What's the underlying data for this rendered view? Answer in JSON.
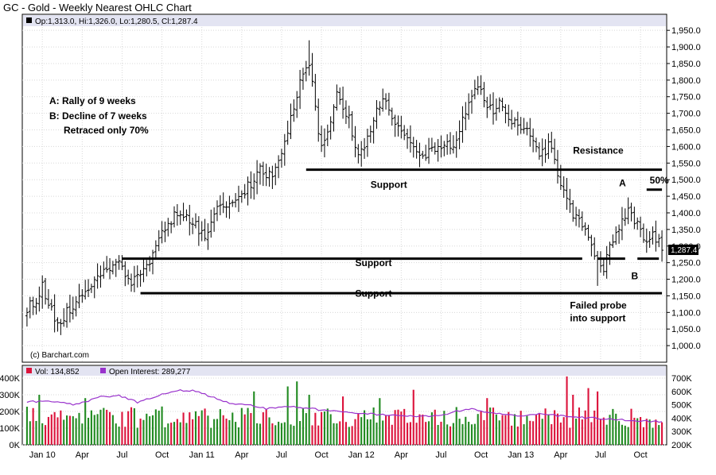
{
  "chart_data": {
    "type": "ohlc",
    "title": "GC - Gold - Weekly Nearest OHLC Chart",
    "info_line": "Op:1,313.0, Hi:1,326.0, Lo:1,280.5, Cl:1,287.4",
    "last_price_label": "1,287.4",
    "last_price": 1287.4,
    "copyright": "(c) Barchart.com",
    "price_axis": {
      "ylim": [
        950,
        1960
      ],
      "ticks": [
        1000,
        1050,
        1100,
        1150,
        1200,
        1250,
        1300,
        1350,
        1400,
        1450,
        1500,
        1550,
        1600,
        1650,
        1700,
        1750,
        1800,
        1850,
        1900,
        1950
      ],
      "tick_labels": [
        "1,000.0",
        "1,050.0",
        "1,100.0",
        "1,150.0",
        "1,200.0",
        "1,250.0",
        "1,300.0",
        "1,350.0",
        "1,400.0",
        "1,450.0",
        "1,500.0",
        "1,550.0",
        "1,600.0",
        "1,650.0",
        "1,700.0",
        "1,750.0",
        "1,800.0",
        "1,850.0",
        "1,900.0",
        "1,950.0"
      ]
    },
    "x_axis": {
      "labels": [
        "Jan 10",
        "Apr",
        "Jul",
        "Oct",
        "Jan 11",
        "Apr",
        "Jul",
        "Oct",
        "Jan 12",
        "Apr",
        "Jul",
        "Oct",
        "Jan 13",
        "Apr",
        "Jul",
        "Oct"
      ],
      "label_weeks": [
        5,
        18,
        31,
        44,
        57,
        70,
        83,
        96,
        109,
        122,
        135,
        148,
        161,
        174,
        187,
        200
      ],
      "week_count": 208
    },
    "price_anchors": [
      [
        0,
        1110
      ],
      [
        3,
        1140
      ],
      [
        5,
        1180
      ],
      [
        7,
        1130
      ],
      [
        9,
        1080
      ],
      [
        11,
        1070
      ],
      [
        13,
        1100
      ],
      [
        16,
        1120
      ],
      [
        18,
        1150
      ],
      [
        21,
        1180
      ],
      [
        24,
        1220
      ],
      [
        27,
        1240
      ],
      [
        30,
        1250
      ],
      [
        32,
        1210
      ],
      [
        34,
        1195
      ],
      [
        36,
        1210
      ],
      [
        39,
        1240
      ],
      [
        42,
        1290
      ],
      [
        44,
        1340
      ],
      [
        46,
        1370
      ],
      [
        48,
        1390
      ],
      [
        50,
        1400
      ],
      [
        52,
        1390
      ],
      [
        54,
        1370
      ],
      [
        56,
        1350
      ],
      [
        58,
        1330
      ],
      [
        60,
        1370
      ],
      [
        62,
        1420
      ],
      [
        64,
        1430
      ],
      [
        66,
        1420
      ],
      [
        68,
        1440
      ],
      [
        70,
        1450
      ],
      [
        72,
        1480
      ],
      [
        74,
        1500
      ],
      [
        76,
        1530
      ],
      [
        78,
        1520
      ],
      [
        80,
        1500
      ],
      [
        82,
        1560
      ],
      [
        84,
        1610
      ],
      [
        86,
        1680
      ],
      [
        88,
        1760
      ],
      [
        90,
        1820
      ],
      [
        92,
        1850
      ],
      [
        93,
        1790
      ],
      [
        95,
        1640
      ],
      [
        96,
        1600
      ],
      [
        98,
        1640
      ],
      [
        100,
        1720
      ],
      [
        101,
        1760
      ],
      [
        103,
        1700
      ],
      [
        105,
        1680
      ],
      [
        107,
        1600
      ],
      [
        109,
        1580
      ],
      [
        111,
        1620
      ],
      [
        113,
        1680
      ],
      [
        115,
        1730
      ],
      [
        116,
        1750
      ],
      [
        118,
        1700
      ],
      [
        120,
        1660
      ],
      [
        122,
        1650
      ],
      [
        124,
        1640
      ],
      [
        126,
        1590
      ],
      [
        128,
        1570
      ],
      [
        130,
        1580
      ],
      [
        132,
        1600
      ],
      [
        134,
        1590
      ],
      [
        136,
        1610
      ],
      [
        138,
        1590
      ],
      [
        140,
        1620
      ],
      [
        142,
        1680
      ],
      [
        144,
        1720
      ],
      [
        146,
        1760
      ],
      [
        148,
        1770
      ],
      [
        150,
        1720
      ],
      [
        152,
        1710
      ],
      [
        154,
        1730
      ],
      [
        156,
        1690
      ],
      [
        158,
        1680
      ],
      [
        160,
        1670
      ],
      [
        162,
        1660
      ],
      [
        164,
        1640
      ],
      [
        166,
        1590
      ],
      [
        168,
        1580
      ],
      [
        170,
        1600
      ],
      [
        172,
        1560
      ],
      [
        174,
        1480
      ],
      [
        176,
        1450
      ],
      [
        178,
        1380
      ],
      [
        180,
        1390
      ],
      [
        182,
        1340
      ],
      [
        184,
        1310
      ],
      [
        186,
        1250
      ],
      [
        188,
        1230
      ],
      [
        190,
        1290
      ],
      [
        192,
        1340
      ],
      [
        194,
        1370
      ],
      [
        196,
        1400
      ],
      [
        197,
        1395
      ],
      [
        199,
        1360
      ],
      [
        200,
        1340
      ],
      [
        202,
        1320
      ],
      [
        204,
        1330
      ],
      [
        206,
        1310
      ],
      [
        207,
        1287.4
      ]
    ],
    "volume_axis": {
      "ylim": [
        0,
        400000
      ],
      "ticks": [
        0,
        100000,
        200000,
        300000,
        400000
      ],
      "tick_labels": [
        "0K",
        "100K",
        "200K",
        "300K",
        "400K"
      ],
      "legend": "Vol: 134,852",
      "up_color": "#228B22",
      "down_color": "#DC143C"
    },
    "open_interest_axis": {
      "ylim": [
        200000,
        700000
      ],
      "ticks": [
        200000,
        300000,
        400000,
        500000,
        600000,
        700000
      ],
      "tick_labels": [
        "200K",
        "300K",
        "400K",
        "500K",
        "600K",
        "700K"
      ],
      "legend": "Open Interest: 289,277",
      "color": "#9932CC",
      "anchors": [
        [
          0,
          520000
        ],
        [
          8,
          530000
        ],
        [
          16,
          500000
        ],
        [
          24,
          560000
        ],
        [
          30,
          570000
        ],
        [
          36,
          520000
        ],
        [
          44,
          580000
        ],
        [
          50,
          610000
        ],
        [
          56,
          600000
        ],
        [
          60,
          560000
        ],
        [
          66,
          510000
        ],
        [
          72,
          500000
        ],
        [
          78,
          470000
        ],
        [
          84,
          490000
        ],
        [
          90,
          480000
        ],
        [
          96,
          460000
        ],
        [
          104,
          450000
        ],
        [
          112,
          430000
        ],
        [
          120,
          420000
        ],
        [
          128,
          410000
        ],
        [
          136,
          430000
        ],
        [
          144,
          470000
        ],
        [
          152,
          440000
        ],
        [
          160,
          420000
        ],
        [
          168,
          430000
        ],
        [
          176,
          410000
        ],
        [
          184,
          400000
        ],
        [
          192,
          390000
        ],
        [
          200,
          380000
        ],
        [
          207,
          370000
        ]
      ]
    },
    "annotations": [
      {
        "id": "resistance",
        "text": "Resistance",
        "week": 178,
        "price": 1578
      },
      {
        "id": "support-1",
        "text": "Support",
        "week": 112,
        "price": 1475
      },
      {
        "id": "support-2",
        "text": "Support",
        "week": 107,
        "price": 1240
      },
      {
        "id": "support-3",
        "text": "Support",
        "week": 107,
        "price": 1147
      },
      {
        "id": "label-a",
        "text": "A",
        "week": 193,
        "price": 1480
      },
      {
        "id": "label-b",
        "text": "B",
        "week": 197,
        "price": 1200
      },
      {
        "id": "fifty-pct",
        "text": "50%",
        "week": 203,
        "price": 1488
      },
      {
        "id": "failed-probe-1",
        "text": "Failed probe",
        "week": 177,
        "price": 1112
      },
      {
        "id": "failed-probe-2",
        "text": "into support",
        "week": 177,
        "price": 1073
      }
    ],
    "note_lines": [
      "A:  Rally of 9 weeks",
      "B:  Decline of 7 weeks",
      "Retraced only 70%"
    ],
    "horizontal_lines": [
      {
        "name": "resistance-line",
        "w1": 91,
        "w2": 207,
        "price": 1530
      },
      {
        "name": "support-line-high",
        "w1": 31,
        "w2": 181,
        "price": 1262
      },
      {
        "name": "support-line-low",
        "w1": 37,
        "w2": 207,
        "price": 1158
      },
      {
        "name": "fifty-pct-line",
        "w1": 202,
        "w2": 207,
        "price": 1470
      },
      {
        "name": "b-support-line",
        "w1": 186,
        "w2": 195,
        "price": 1262
      },
      {
        "name": "b-support-line-2",
        "w1": 199,
        "w2": 206,
        "price": 1262
      }
    ]
  }
}
